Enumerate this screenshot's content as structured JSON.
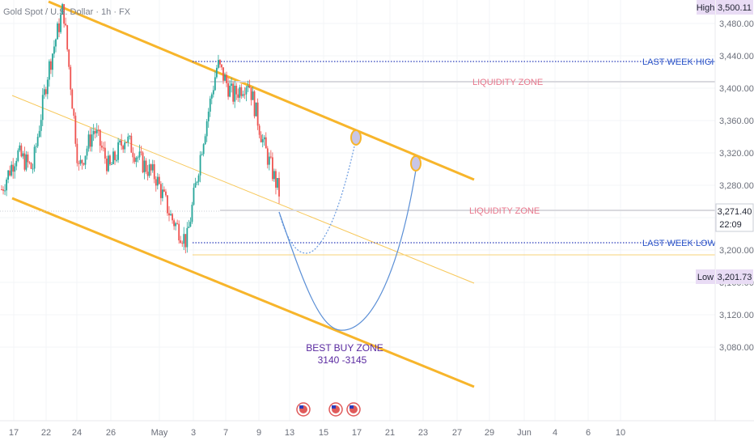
{
  "header": {
    "symbol_label": "Gold Spot / U.S. Dollar · 1h · FX"
  },
  "price_axis": {
    "ticks": [
      "3,480.00",
      "3,440.00",
      "3,400.00",
      "3,360.00",
      "3,320.00",
      "3,280.00",
      "3,240.00",
      "3,200.00",
      "3,160.00",
      "3,120.00",
      "3,080.00"
    ],
    "high_label": "High",
    "high_value": "3,500.11",
    "low_label": "Low",
    "low_value": "3,201.73",
    "current_price": "3,271.40",
    "countdown": "22:09"
  },
  "time_axis": {
    "ticks": [
      "17",
      "22",
      "24",
      "26",
      "May",
      "3",
      "7",
      "9",
      "13",
      "15",
      "17",
      "21",
      "23",
      "27",
      "29",
      "Jun",
      "4",
      "6",
      "10"
    ]
  },
  "annotations": {
    "last_week_high": "LAST WEEK HIGH",
    "last_week_low": "LAST WEEK LOW",
    "liquidity_zone_upper": "LIQUIDITY ZONE",
    "liquidity_zone_lower": "LIQUIDITY ZONE",
    "best_buy_zone_title": "BEST BUY ZONE",
    "best_buy_zone_range": "3140 -3145"
  },
  "colors": {
    "channel": "#f7b52b",
    "channel_mid": "#f7c85a",
    "bull": "#26a69a",
    "bear": "#ef5350",
    "level_line": "#2b3dbb",
    "projection": "#5b8fd6",
    "badge_bg": "#e9dcf5",
    "price_badge": "#ffffff"
  },
  "chart_data": {
    "type": "candlestick",
    "title": "Gold Spot / U.S. Dollar · 1h · FX",
    "ylim": [
      3060,
      3500
    ],
    "yticks": [
      3480,
      3440,
      3400,
      3360,
      3320,
      3280,
      3240,
      3200,
      3160,
      3120,
      3080
    ],
    "x_tick_labels": [
      "17",
      "22",
      "24",
      "26",
      "May",
      "3",
      "7",
      "9",
      "13",
      "15",
      "17",
      "21",
      "23",
      "27",
      "29",
      "Jun",
      "4",
      "6",
      "10"
    ],
    "price_path": [
      {
        "t": "Apr 16",
        "p": 3275
      },
      {
        "t": "Apr 17",
        "p": 3320
      },
      {
        "t": "Apr 18",
        "p": 3300
      },
      {
        "t": "Apr 21",
        "p": 3420
      },
      {
        "t": "Apr 22",
        "p": 3500
      },
      {
        "t": "Apr 23",
        "p": 3300
      },
      {
        "t": "Apr 24",
        "p": 3350
      },
      {
        "t": "Apr 25",
        "p": 3300
      },
      {
        "t": "Apr 28",
        "p": 3340
      },
      {
        "t": "Apr 29",
        "p": 3310
      },
      {
        "t": "Apr 30",
        "p": 3290
      },
      {
        "t": "May 1",
        "p": 3240
      },
      {
        "t": "May 2",
        "p": 3210
      },
      {
        "t": "May 5",
        "p": 3330
      },
      {
        "t": "May 6",
        "p": 3430
      },
      {
        "t": "May 7",
        "p": 3390
      },
      {
        "t": "May 8",
        "p": 3410
      },
      {
        "t": "May 9",
        "p": 3330
      },
      {
        "t": "May 12",
        "p": 3271
      }
    ],
    "high": 3500.11,
    "low": 3201.73,
    "last_price": 3271.4,
    "levels": [
      {
        "label": "LAST WEEK HIGH",
        "value": 3436
      },
      {
        "label": "LIQUIDITY ZONE",
        "value": 3416
      },
      {
        "label": "LIQUIDITY ZONE",
        "value": 3273
      },
      {
        "label": "LAST WEEK LOW",
        "value": 3237
      },
      {
        "label": "",
        "value": 3223
      }
    ],
    "buy_zone": {
      "label": "BEST BUY ZONE",
      "range": [
        3140,
        3145
      ]
    },
    "grid": true,
    "legend": "none"
  }
}
